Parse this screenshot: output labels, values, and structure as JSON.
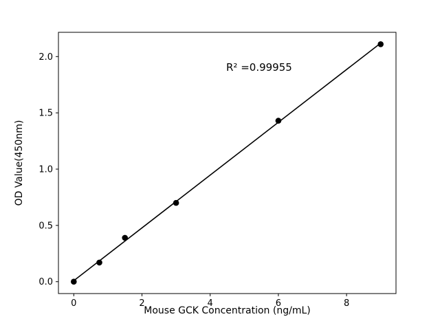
{
  "chart_data": {
    "type": "scatter",
    "title": "",
    "xlabel": "Mouse GCK Concentration (ng/mL)",
    "ylabel": "OD Value(450nm)",
    "annotation": "R² =0.99955",
    "x": [
      0,
      0.75,
      1.5,
      3,
      6,
      9
    ],
    "y": [
      0.0,
      0.17,
      0.39,
      0.7,
      1.43,
      2.11
    ],
    "fit": {
      "slope": 0.2345,
      "intercept": 0.009,
      "x_start": 0,
      "x_end": 9,
      "r_squared": 0.99955
    },
    "xlim": [
      -0.45,
      9.45
    ],
    "ylim": [
      -0.1055,
      2.2155
    ],
    "xticks": [
      0,
      2,
      4,
      6,
      8
    ],
    "xtick_labels": [
      "0",
      "2",
      "4",
      "6",
      "8"
    ],
    "yticks": [
      0.0,
      0.5,
      1.0,
      1.5,
      2.0
    ],
    "ytick_labels": [
      "0.0",
      "0.5",
      "1.0",
      "1.5",
      "2.0"
    ],
    "grid": false,
    "legend": null,
    "marker_color": "#000000",
    "line_color": "#000000",
    "background_color": "#ffffff"
  }
}
